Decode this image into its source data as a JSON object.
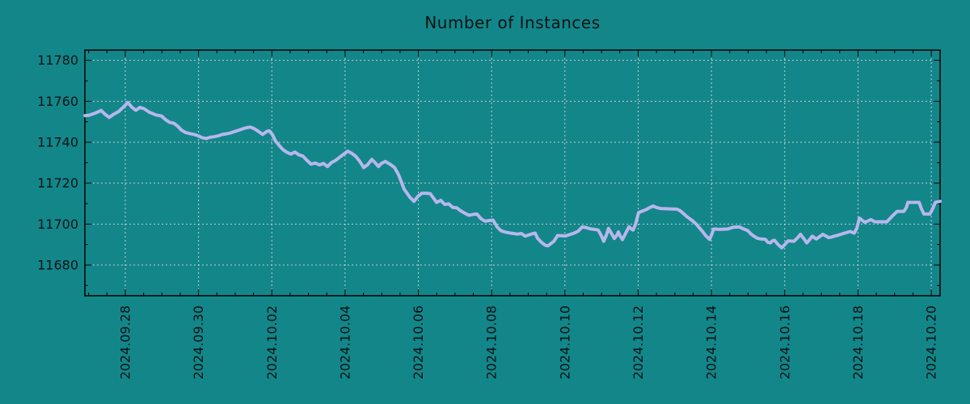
{
  "chart_data": {
    "type": "line",
    "title": "Number of Instances",
    "legend": "none",
    "grid": "dotted",
    "colors": {
      "background": "#13868A",
      "line": "#B7B7EC",
      "grid": "#D8D8D8",
      "axis": "#000000",
      "text": "#041414"
    },
    "y_axis": {
      "range": [
        11665,
        11785
      ],
      "major_ticks": [
        11680,
        11700,
        11720,
        11740,
        11760,
        11780
      ],
      "minor_step": 10
    },
    "x_axis": {
      "unit": "days relative to 2024-09-28",
      "range": [
        -1.103,
        22.241
      ],
      "major_tick_days": [
        0,
        2,
        4,
        6,
        8,
        10,
        12,
        14,
        16,
        18,
        20,
        22
      ],
      "major_tick_labels": [
        "2024.09.28",
        "2024.09.30",
        "2024.10.02",
        "2024.10.04",
        "2024.10.06",
        "2024.10.08",
        "2024.10.10",
        "2024.10.12",
        "2024.10.14",
        "2024.10.16",
        "2024.10.18",
        "2024.10.20"
      ],
      "minor_step": 0.5
    },
    "series": [
      {
        "name": "instances",
        "color": "#B7B7EC",
        "points": [
          [
            -1.1,
            11753
          ],
          [
            -0.99,
            11753.2
          ],
          [
            -0.82,
            11754.2
          ],
          [
            -0.66,
            11755.5
          ],
          [
            -0.55,
            11753.6
          ],
          [
            -0.44,
            11752.1
          ],
          [
            -0.33,
            11753.5
          ],
          [
            -0.18,
            11755
          ],
          [
            -0.04,
            11757.4
          ],
          [
            0.07,
            11759.4
          ],
          [
            0.18,
            11757.1
          ],
          [
            0.29,
            11755.6
          ],
          [
            0.4,
            11757
          ],
          [
            0.51,
            11756.4
          ],
          [
            0.66,
            11754.6
          ],
          [
            0.84,
            11753.3
          ],
          [
            0.99,
            11752.8
          ],
          [
            1.1,
            11751
          ],
          [
            1.21,
            11749.7
          ],
          [
            1.32,
            11749.3
          ],
          [
            1.43,
            11747.8
          ],
          [
            1.54,
            11745.8
          ],
          [
            1.65,
            11744.7
          ],
          [
            1.77,
            11744.2
          ],
          [
            1.88,
            11743.8
          ],
          [
            1.99,
            11743.1
          ],
          [
            2.1,
            11742.2
          ],
          [
            2.21,
            11741.8
          ],
          [
            2.32,
            11742.4
          ],
          [
            2.43,
            11742.7
          ],
          [
            2.54,
            11743.1
          ],
          [
            2.65,
            11743.8
          ],
          [
            2.76,
            11744.1
          ],
          [
            2.87,
            11744.5
          ],
          [
            2.98,
            11745.2
          ],
          [
            3.09,
            11745.8
          ],
          [
            3.2,
            11746.5
          ],
          [
            3.31,
            11747.1
          ],
          [
            3.42,
            11747.4
          ],
          [
            3.53,
            11746.5
          ],
          [
            3.64,
            11745.2
          ],
          [
            3.75,
            11743.8
          ],
          [
            3.86,
            11745.2
          ],
          [
            3.93,
            11745.6
          ],
          [
            4.02,
            11743.6
          ],
          [
            4.1,
            11740.6
          ],
          [
            4.19,
            11738.6
          ],
          [
            4.3,
            11736.4
          ],
          [
            4.41,
            11735.1
          ],
          [
            4.52,
            11734.2
          ],
          [
            4.63,
            11735.2
          ],
          [
            4.74,
            11733.8
          ],
          [
            4.85,
            11733.2
          ],
          [
            4.96,
            11731.1
          ],
          [
            5.07,
            11729.3
          ],
          [
            5.19,
            11729.8
          ],
          [
            5.3,
            11728.9
          ],
          [
            5.41,
            11729.6
          ],
          [
            5.52,
            11728.1
          ],
          [
            5.63,
            11730.1
          ],
          [
            5.74,
            11731.1
          ],
          [
            5.85,
            11732.6
          ],
          [
            5.96,
            11734.1
          ],
          [
            6.07,
            11735.6
          ],
          [
            6.18,
            11734.6
          ],
          [
            6.29,
            11733.1
          ],
          [
            6.4,
            11730.6
          ],
          [
            6.51,
            11727.6
          ],
          [
            6.62,
            11729.1
          ],
          [
            6.73,
            11731.6
          ],
          [
            6.84,
            11729.6
          ],
          [
            6.91,
            11728.1
          ],
          [
            6.99,
            11729.6
          ],
          [
            7.1,
            11730.6
          ],
          [
            7.24,
            11729.1
          ],
          [
            7.35,
            11727.6
          ],
          [
            7.46,
            11724.1
          ],
          [
            7.61,
            11717.1
          ],
          [
            7.77,
            11713.1
          ],
          [
            7.88,
            11711.1
          ],
          [
            7.99,
            11713.6
          ],
          [
            8.1,
            11715.1
          ],
          [
            8.21,
            11715.1
          ],
          [
            8.32,
            11714.9
          ],
          [
            8.5,
            11710.6
          ],
          [
            8.61,
            11711.6
          ],
          [
            8.72,
            11709.6
          ],
          [
            8.83,
            11709.9
          ],
          [
            8.94,
            11708.1
          ],
          [
            9.05,
            11707.9
          ],
          [
            9.16,
            11706.4
          ],
          [
            9.27,
            11705.3
          ],
          [
            9.38,
            11704.3
          ],
          [
            9.49,
            11704.7
          ],
          [
            9.6,
            11704.9
          ],
          [
            9.71,
            11702.6
          ],
          [
            9.82,
            11701.4
          ],
          [
            9.93,
            11701.7
          ],
          [
            10.04,
            11701.9
          ],
          [
            10.15,
            11698.6
          ],
          [
            10.26,
            11696.7
          ],
          [
            10.37,
            11696.1
          ],
          [
            10.48,
            11695.7
          ],
          [
            10.59,
            11695.4
          ],
          [
            10.7,
            11695.1
          ],
          [
            10.81,
            11695.4
          ],
          [
            10.92,
            11694.1
          ],
          [
            11.08,
            11695.1
          ],
          [
            11.19,
            11695.6
          ],
          [
            11.25,
            11693.1
          ],
          [
            11.36,
            11691.1
          ],
          [
            11.47,
            11689.6
          ],
          [
            11.54,
            11689.4
          ],
          [
            11.7,
            11691.6
          ],
          [
            11.8,
            11694.4
          ],
          [
            12.02,
            11694.2
          ],
          [
            12.25,
            11695.6
          ],
          [
            12.36,
            11696.5
          ],
          [
            12.47,
            11698.6
          ],
          [
            12.58,
            11698.3
          ],
          [
            12.69,
            11697.7
          ],
          [
            12.8,
            11697.4
          ],
          [
            12.91,
            11697.1
          ],
          [
            13.0,
            11694.1
          ],
          [
            13.06,
            11691.6
          ],
          [
            13.13,
            11694.6
          ],
          [
            13.19,
            11697.9
          ],
          [
            13.28,
            11695.1
          ],
          [
            13.35,
            11693
          ],
          [
            13.42,
            11694.6
          ],
          [
            13.46,
            11696.2
          ],
          [
            13.51,
            11694.1
          ],
          [
            13.57,
            11692.4
          ],
          [
            13.66,
            11695.6
          ],
          [
            13.75,
            11698.7
          ],
          [
            13.81,
            11697.6
          ],
          [
            13.86,
            11697.1
          ],
          [
            13.93,
            11700.1
          ],
          [
            14.01,
            11705.6
          ],
          [
            14.12,
            11706.4
          ],
          [
            14.23,
            11707.2
          ],
          [
            14.32,
            11708.1
          ],
          [
            14.41,
            11708.8
          ],
          [
            14.5,
            11708.1
          ],
          [
            14.61,
            11707.6
          ],
          [
            14.72,
            11707.5
          ],
          [
            14.89,
            11707.4
          ],
          [
            15.05,
            11707.3
          ],
          [
            15.14,
            11706.6
          ],
          [
            15.22,
            11705.4
          ],
          [
            15.33,
            11703.6
          ],
          [
            15.49,
            11701.5
          ],
          [
            15.58,
            11700.1
          ],
          [
            15.67,
            11698.2
          ],
          [
            15.76,
            11696.3
          ],
          [
            15.84,
            11694.4
          ],
          [
            15.95,
            11692.5
          ],
          [
            16.01,
            11695.1
          ],
          [
            16.06,
            11697.6
          ],
          [
            16.22,
            11697.4
          ],
          [
            16.44,
            11697.6
          ],
          [
            16.61,
            11698.5
          ],
          [
            16.77,
            11698.6
          ],
          [
            16.88,
            11697.6
          ],
          [
            16.99,
            11696.8
          ],
          [
            17.08,
            11695.1
          ],
          [
            17.16,
            11694.1
          ],
          [
            17.25,
            11693.1
          ],
          [
            17.32,
            11692.8
          ],
          [
            17.47,
            11692.6
          ],
          [
            17.54,
            11691.1
          ],
          [
            17.61,
            11690.8
          ],
          [
            17.67,
            11691.9
          ],
          [
            17.72,
            11692.1
          ],
          [
            17.81,
            11690.1
          ],
          [
            17.92,
            11688.4
          ],
          [
            18.01,
            11690.1
          ],
          [
            18.09,
            11691.8
          ],
          [
            18.25,
            11691.6
          ],
          [
            18.34,
            11693.1
          ],
          [
            18.43,
            11695
          ],
          [
            18.52,
            11692.9
          ],
          [
            18.6,
            11690.8
          ],
          [
            18.68,
            11692.4
          ],
          [
            18.75,
            11694.1
          ],
          [
            18.81,
            11693.4
          ],
          [
            18.86,
            11692.7
          ],
          [
            18.95,
            11693.8
          ],
          [
            19.04,
            11695
          ],
          [
            19.12,
            11694.2
          ],
          [
            19.2,
            11693.4
          ],
          [
            19.28,
            11693.7
          ],
          [
            19.35,
            11694.1
          ],
          [
            19.44,
            11694.5
          ],
          [
            19.53,
            11695
          ],
          [
            19.66,
            11695.7
          ],
          [
            19.79,
            11696.4
          ],
          [
            19.85,
            11695.9
          ],
          [
            19.9,
            11695.6
          ],
          [
            19.97,
            11698.1
          ],
          [
            20.04,
            11702.9
          ],
          [
            20.11,
            11701.9
          ],
          [
            20.19,
            11700.9
          ],
          [
            20.27,
            11701.5
          ],
          [
            20.35,
            11702.2
          ],
          [
            20.41,
            11701.6
          ],
          [
            20.46,
            11701.1
          ],
          [
            20.79,
            11701.1
          ],
          [
            20.92,
            11703.6
          ],
          [
            21.07,
            11706.2
          ],
          [
            21.25,
            11706.2
          ],
          [
            21.32,
            11708.1
          ],
          [
            21.36,
            11710.6
          ],
          [
            21.67,
            11710.6
          ],
          [
            21.73,
            11707.6
          ],
          [
            21.8,
            11704.9
          ],
          [
            21.96,
            11704.9
          ],
          [
            22.03,
            11707.1
          ],
          [
            22.11,
            11710.6
          ],
          [
            22.24,
            11711.1
          ]
        ]
      }
    ]
  }
}
